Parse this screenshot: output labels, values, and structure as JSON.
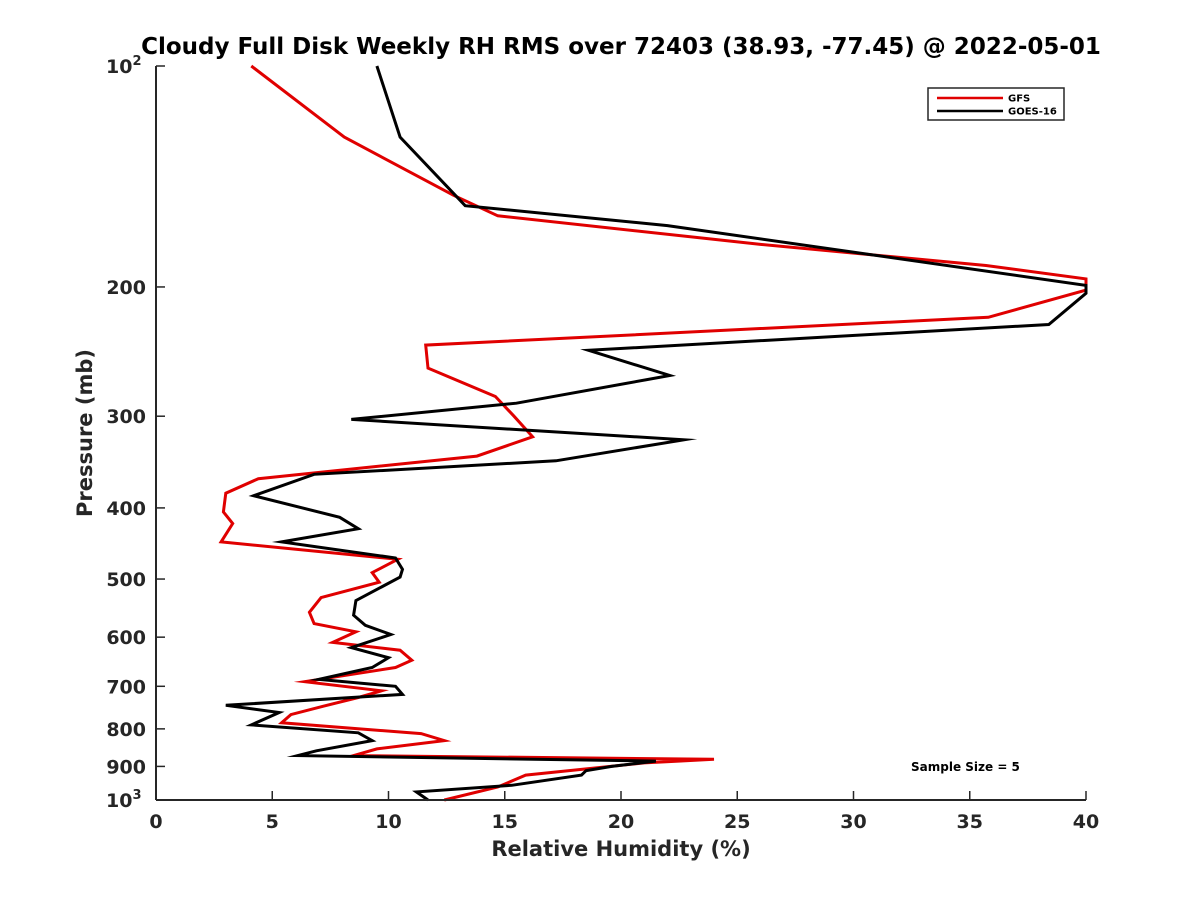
{
  "chart_data": {
    "type": "line",
    "title": "Cloudy Full Disk Weekly RH RMS over 72403 (38.93, -77.45) @ 2022-05-01",
    "xlabel": "Relative Humidity (%)",
    "ylabel": "Pressure (mb)",
    "xlim": [
      0,
      40
    ],
    "ylim": [
      100,
      1000
    ],
    "yscale": "log",
    "y_reversed": true,
    "grid": false,
    "xticks": [
      0,
      5,
      10,
      15,
      20,
      25,
      30,
      35,
      40
    ],
    "yticks": [
      {
        "value": 100,
        "base": "10",
        "exp": "2"
      },
      {
        "value": 200,
        "label": "200"
      },
      {
        "value": 300,
        "label": "300"
      },
      {
        "value": 400,
        "label": "400"
      },
      {
        "value": 500,
        "label": "500"
      },
      {
        "value": 600,
        "label": "600"
      },
      {
        "value": 700,
        "label": "700"
      },
      {
        "value": 800,
        "label": "800"
      },
      {
        "value": 900,
        "label": "900"
      },
      {
        "value": 1000,
        "base": "10",
        "exp": "3"
      }
    ],
    "legend_position": "top-right",
    "annotation": "Sample Size = 5",
    "series": [
      {
        "name": "GFS",
        "color": "#e00000",
        "points": [
          [
            4.1,
            100
          ],
          [
            8.1,
            125
          ],
          [
            12.8,
            150
          ],
          [
            14.7,
            160
          ],
          [
            26,
            175
          ],
          [
            35.7,
            187
          ],
          [
            40,
            195
          ],
          [
            40,
            202
          ],
          [
            35.8,
            220
          ],
          [
            11.6,
            240
          ],
          [
            11.7,
            258
          ],
          [
            14.6,
            282
          ],
          [
            15.4,
            300
          ],
          [
            16.2,
            320
          ],
          [
            13.8,
            340
          ],
          [
            4.4,
            365
          ],
          [
            3,
            382
          ],
          [
            2.9,
            405
          ],
          [
            3.3,
            420
          ],
          [
            2.8,
            445
          ],
          [
            10.4,
            470
          ],
          [
            9.3,
            490
          ],
          [
            9.6,
            505
          ],
          [
            7.1,
            530
          ],
          [
            6.6,
            555
          ],
          [
            6.8,
            575
          ],
          [
            8.6,
            590
          ],
          [
            7.6,
            610
          ],
          [
            10.5,
            625
          ],
          [
            11.0,
            645
          ],
          [
            10.3,
            660
          ],
          [
            6.4,
            690
          ],
          [
            9.7,
            710
          ],
          [
            8.7,
            725
          ],
          [
            7.2,
            745
          ],
          [
            5.8,
            765
          ],
          [
            5.4,
            785
          ],
          [
            11.4,
            812
          ],
          [
            12.4,
            830
          ],
          [
            9.5,
            852
          ],
          [
            8.5,
            870
          ],
          [
            24.0,
            880
          ],
          [
            21,
            890
          ],
          [
            15.9,
            925
          ],
          [
            14.7,
            960
          ],
          [
            12.4,
            1000
          ]
        ]
      },
      {
        "name": "GOES-16",
        "color": "#000000",
        "points": [
          [
            9.5,
            100
          ],
          [
            10.5,
            125
          ],
          [
            13.3,
            155
          ],
          [
            22,
            165
          ],
          [
            40,
            199
          ],
          [
            40,
            204
          ],
          [
            38.4,
            225
          ],
          [
            18.6,
            244
          ],
          [
            22.1,
            264
          ],
          [
            15.5,
            288
          ],
          [
            8.4,
            303
          ],
          [
            22.7,
            323
          ],
          [
            17.2,
            345
          ],
          [
            6.8,
            360
          ],
          [
            4.2,
            385
          ],
          [
            7.9,
            412
          ],
          [
            8.7,
            427
          ],
          [
            5.4,
            445
          ],
          [
            10.3,
            468
          ],
          [
            10.6,
            485
          ],
          [
            10.5,
            497
          ],
          [
            8.6,
            535
          ],
          [
            8.5,
            560
          ],
          [
            9.0,
            578
          ],
          [
            10.1,
            595
          ],
          [
            8.4,
            620
          ],
          [
            10,
            640
          ],
          [
            9.3,
            660
          ],
          [
            7,
            685
          ],
          [
            10.3,
            700
          ],
          [
            10.6,
            718
          ],
          [
            3.0,
            743
          ],
          [
            5.3,
            760
          ],
          [
            4.1,
            790
          ],
          [
            8.7,
            810
          ],
          [
            9.3,
            830
          ],
          [
            6.9,
            857
          ],
          [
            6.1,
            870
          ],
          [
            21.5,
            885
          ],
          [
            19.6,
            900
          ],
          [
            18.5,
            912
          ],
          [
            18.3,
            925
          ],
          [
            15.3,
            955
          ],
          [
            11.2,
            975
          ],
          [
            11.7,
            1000
          ]
        ]
      }
    ]
  }
}
